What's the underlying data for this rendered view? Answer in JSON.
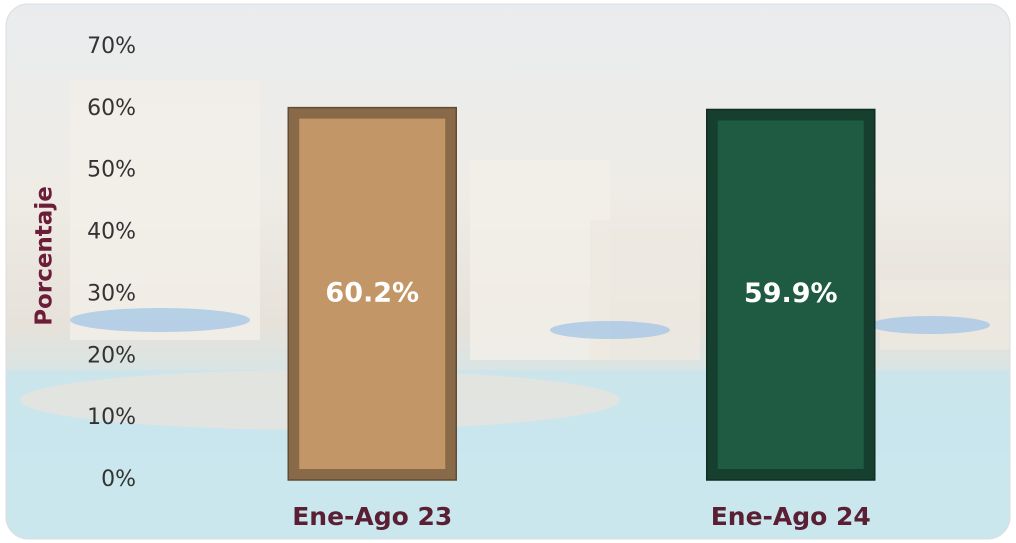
{
  "chart_data": {
    "type": "bar",
    "y_label": "Porcentaje",
    "categories": [
      "Ene-Ago 23",
      "Ene-Ago 24"
    ],
    "values": [
      60.2,
      59.9
    ],
    "value_labels": [
      "60.2%",
      "59.9%"
    ],
    "colors": [
      "#c29667",
      "#1f5a43"
    ],
    "ylim": [
      0,
      70
    ],
    "yticks": [
      {
        "value": 0,
        "label": "0%"
      },
      {
        "value": 10,
        "label": "10%"
      },
      {
        "value": 20,
        "label": "20%"
      },
      {
        "value": 30,
        "label": "30%"
      },
      {
        "value": 40,
        "label": "40%"
      },
      {
        "value": 50,
        "label": "50%"
      },
      {
        "value": 60,
        "label": "60%"
      },
      {
        "value": 70,
        "label": "70%"
      }
    ],
    "grid": false
  }
}
